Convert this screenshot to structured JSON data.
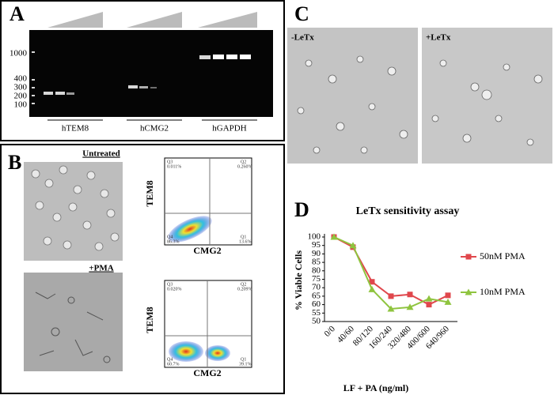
{
  "panels": {
    "A": {
      "label": "A",
      "size_labels": [
        "1000",
        "400",
        "300",
        "200",
        "100"
      ],
      "lanes": [
        "hTEM8",
        "hCMG2",
        "hGAPDH"
      ]
    },
    "B": {
      "label": "B",
      "conditions": [
        "Untreated",
        "+PMA"
      ],
      "flow": [
        {
          "y_axis": "TEM8",
          "x_axis": "CMG2",
          "quadrants": [
            "Q3",
            "Q2",
            "Q4",
            "Q1"
          ],
          "percents": [
            "0.011%",
            "0.260%",
            "86.3%",
            "13.6%"
          ]
        },
        {
          "y_axis": "TEM8",
          "x_axis": "CMG2",
          "quadrants": [
            "Q3",
            "Q2",
            "Q4",
            "Q1"
          ],
          "percents": [
            "0.020%",
            "0.209%",
            "60.7%",
            "39.1%"
          ]
        }
      ]
    },
    "C": {
      "label": "C",
      "images": [
        "-LeTx",
        "+LeTx"
      ]
    },
    "D": {
      "label": "D"
    }
  },
  "chart_data": {
    "type": "line",
    "title": "LeTx sensitivity assay",
    "x_label": "LF + PA (ng/ml)",
    "y_label": "% Viable Cells",
    "categories": [
      "0/0",
      "40/60",
      "80/120",
      "160/240",
      "320/480",
      "400/600",
      "640/960"
    ],
    "series": [
      {
        "name": "50nM PMA",
        "color": "#e0474c",
        "marker": "square",
        "values": [
          100,
          94,
          73.5,
          65,
          66,
          60,
          65.5
        ]
      },
      {
        "name": "10nM PMA",
        "color": "#8fc43f",
        "marker": "triangle",
        "values": [
          100,
          95,
          69,
          57.5,
          58.5,
          63.5,
          61.5
        ]
      }
    ],
    "ylim": [
      50,
      100
    ],
    "yticks": [
      50,
      55,
      60,
      65,
      70,
      75,
      80,
      85,
      90,
      95,
      100
    ],
    "grid": false,
    "legend": "right"
  }
}
